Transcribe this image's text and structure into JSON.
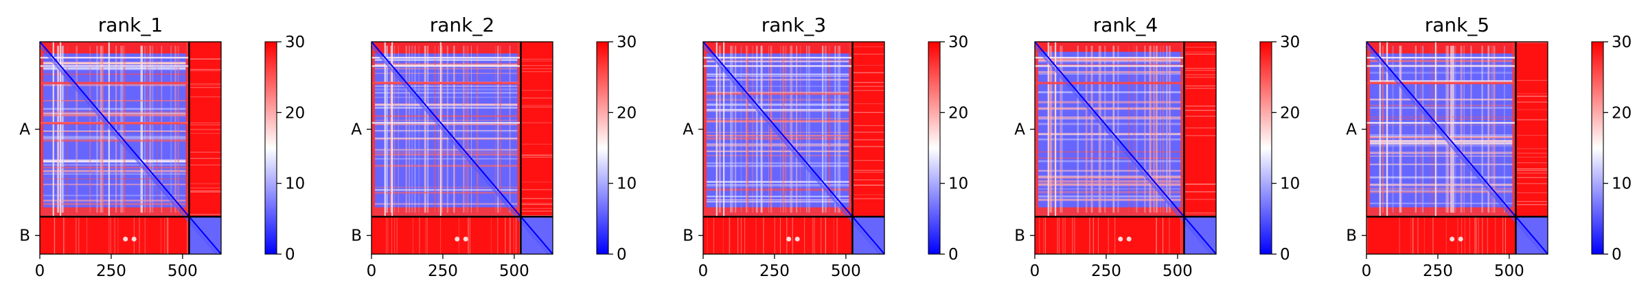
{
  "colors": {
    "low": "#0000ff",
    "mid": "#ffffff",
    "high": "#ff0000",
    "divider": "#000000"
  },
  "chart_data": [
    {
      "type": "heatmap",
      "title": "rank_1",
      "x_ticks": [
        0,
        250,
        500
      ],
      "xlim": [
        0,
        635
      ],
      "y_chains": [
        {
          "label": "A",
          "start": 0,
          "end": 523
        },
        {
          "label": "B",
          "start": 523,
          "end": 635
        }
      ],
      "chain_break": 523,
      "colorbar": {
        "min": 0,
        "max": 30,
        "ticks": [
          0,
          10,
          20,
          30
        ]
      },
      "features": {
        "white_lines": [
          45,
          70,
          240
        ],
        "red_rows": [
          120,
          240
        ],
        "dot_row": 590,
        "variant": 1
      }
    },
    {
      "type": "heatmap",
      "title": "rank_2",
      "x_ticks": [
        0,
        250,
        500
      ],
      "xlim": [
        0,
        635
      ],
      "y_chains": [
        {
          "label": "A",
          "start": 0,
          "end": 523
        },
        {
          "label": "B",
          "start": 523,
          "end": 635
        }
      ],
      "chain_break": 523,
      "colorbar": {
        "min": 0,
        "max": 30,
        "ticks": [
          0,
          10,
          20,
          30
        ]
      },
      "features": {
        "white_lines": [
          45,
          70,
          240
        ],
        "red_rows": [
          120
        ],
        "dot_row": 590,
        "variant": 2
      }
    },
    {
      "type": "heatmap",
      "title": "rank_3",
      "x_ticks": [
        0,
        250,
        500
      ],
      "xlim": [
        0,
        635
      ],
      "y_chains": [
        {
          "label": "A",
          "start": 0,
          "end": 523
        },
        {
          "label": "B",
          "start": 523,
          "end": 635
        }
      ],
      "chain_break": 523,
      "colorbar": {
        "min": 0,
        "max": 30,
        "ticks": [
          0,
          10,
          20,
          30
        ]
      },
      "features": {
        "white_lines": [
          45,
          70
        ],
        "red_rows": [],
        "dot_row": 590,
        "variant": 3
      }
    },
    {
      "type": "heatmap",
      "title": "rank_4",
      "x_ticks": [
        0,
        250,
        500
      ],
      "xlim": [
        0,
        635
      ],
      "y_chains": [
        {
          "label": "A",
          "start": 0,
          "end": 523
        },
        {
          "label": "B",
          "start": 523,
          "end": 635
        }
      ],
      "chain_break": 523,
      "colorbar": {
        "min": 0,
        "max": 30,
        "ticks": [
          0,
          10,
          20,
          30
        ]
      },
      "features": {
        "white_lines": [
          45,
          70
        ],
        "red_rows": [
          120
        ],
        "dot_row": 590,
        "variant": 4
      }
    },
    {
      "type": "heatmap",
      "title": "rank_5",
      "x_ticks": [
        0,
        250,
        500
      ],
      "xlim": [
        0,
        635
      ],
      "y_chains": [
        {
          "label": "A",
          "start": 0,
          "end": 523
        },
        {
          "label": "B",
          "start": 523,
          "end": 635
        }
      ],
      "chain_break": 523,
      "colorbar": {
        "min": 0,
        "max": 30,
        "ticks": [
          0,
          10,
          20,
          30
        ]
      },
      "features": {
        "white_lines": [
          45,
          70,
          240
        ],
        "red_rows": [
          120
        ],
        "dot_row": 590,
        "variant": 5
      }
    }
  ]
}
